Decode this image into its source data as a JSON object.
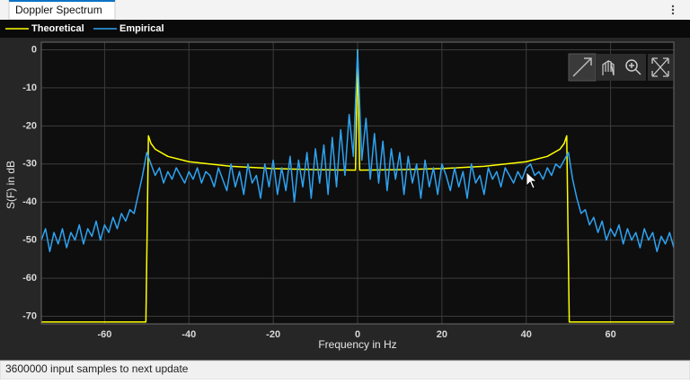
{
  "tab": {
    "title": "Doppler Spectrum"
  },
  "status_bar": {
    "text": "3600000 input samples to next update"
  },
  "chart_data": {
    "type": "line",
    "xlabel": "Frequency in Hz",
    "ylabel": "S(F) in dB",
    "xlim": [
      -75,
      75
    ],
    "ylim": [
      -72,
      2
    ],
    "xticks": [
      -60,
      -40,
      -20,
      0,
      20,
      40,
      60
    ],
    "yticks": [
      0,
      -10,
      -20,
      -30,
      -40,
      -50,
      -60,
      -70
    ],
    "grid": true,
    "legend": "top",
    "series": [
      {
        "name": "Theoretical",
        "color": "#ffff00",
        "x": [
          -75,
          -50.2,
          -49.6,
          -49,
          -48,
          -45,
          -40,
          -30,
          -20,
          -10,
          -0.5,
          0,
          0.5,
          10,
          20,
          30,
          40,
          45,
          48,
          49,
          49.6,
          50.2,
          75
        ],
        "values": [
          -71.5,
          -71.5,
          -22.6,
          -24.6,
          -26.1,
          -28,
          -29.4,
          -30.6,
          -31.2,
          -31.5,
          -31.6,
          0,
          -31.6,
          -31.5,
          -31.2,
          -30.6,
          -29.4,
          -28,
          -26.1,
          -24.6,
          -22.6,
          -71.5,
          -71.5
        ]
      },
      {
        "name": "Empirical",
        "color": "#2ea3f2",
        "x": [
          -75,
          -74,
          -73,
          -72,
          -71,
          -70,
          -69,
          -68,
          -67,
          -66,
          -65,
          -64,
          -63,
          -62,
          -61,
          -60,
          -59,
          -58,
          -57,
          -56,
          -55,
          -54,
          -53,
          -52,
          -51,
          -50,
          -49,
          -48,
          -47,
          -46,
          -45,
          -44,
          -43,
          -42,
          -41,
          -40,
          -39,
          -38,
          -37,
          -36,
          -35,
          -34,
          -33,
          -32,
          -31,
          -30,
          -29,
          -28,
          -27,
          -26,
          -25,
          -24,
          -23,
          -22,
          -21,
          -20,
          -19,
          -18,
          -17,
          -16,
          -15,
          -14,
          -13,
          -12,
          -11,
          -10,
          -9,
          -8,
          -7,
          -6,
          -5,
          -4,
          -3,
          -2,
          -1,
          0,
          1,
          2,
          3,
          4,
          5,
          6,
          7,
          8,
          9,
          10,
          11,
          12,
          13,
          14,
          15,
          16,
          17,
          18,
          19,
          20,
          21,
          22,
          23,
          24,
          25,
          26,
          27,
          28,
          29,
          30,
          31,
          32,
          33,
          34,
          35,
          36,
          37,
          38,
          39,
          40,
          41,
          42,
          43,
          44,
          45,
          46,
          47,
          48,
          49,
          50,
          51,
          52,
          53,
          54,
          55,
          56,
          57,
          58,
          59,
          60,
          61,
          62,
          63,
          64,
          65,
          66,
          67,
          68,
          69,
          70,
          71,
          72,
          73,
          74,
          75
        ],
        "values": [
          -50,
          -47,
          -53,
          -48,
          -51,
          -47,
          -52,
          -48,
          -50,
          -46,
          -51,
          -47,
          -49,
          -45,
          -50,
          -46,
          -48,
          -44,
          -47,
          -43,
          -45,
          -42,
          -43,
          -38,
          -33,
          -27,
          -30,
          -33,
          -31,
          -35,
          -32,
          -34,
          -31,
          -33,
          -35,
          -32,
          -34,
          -31,
          -35,
          -32,
          -33,
          -36,
          -31,
          -34,
          -37,
          -30,
          -36,
          -32,
          -38,
          -30,
          -35,
          -33,
          -39,
          -30,
          -36,
          -29,
          -38,
          -31,
          -37,
          -28,
          -40,
          -29,
          -36,
          -27,
          -39,
          -26,
          -35,
          -25,
          -38,
          -23,
          -36,
          -21,
          -33,
          -17,
          -28,
          0,
          -29,
          -18,
          -34,
          -22,
          -35,
          -24,
          -37,
          -26,
          -34,
          -27,
          -38,
          -28,
          -35,
          -30,
          -39,
          -29,
          -36,
          -31,
          -38,
          -30,
          -33,
          -37,
          -31,
          -36,
          -32,
          -39,
          -30,
          -35,
          -33,
          -38,
          -31,
          -34,
          -32,
          -36,
          -31,
          -33,
          -35,
          -32,
          -34,
          -31,
          -30,
          -33,
          -32,
          -34,
          -31,
          -33,
          -30,
          -31,
          -29,
          -27,
          -34,
          -39,
          -43,
          -42,
          -46,
          -44,
          -48,
          -45,
          -50,
          -47,
          -49,
          -46,
          -51,
          -47,
          -50,
          -48,
          -52,
          -47,
          -50,
          -48,
          -53,
          -49,
          -51,
          -48,
          -52
        ]
      }
    ]
  }
}
